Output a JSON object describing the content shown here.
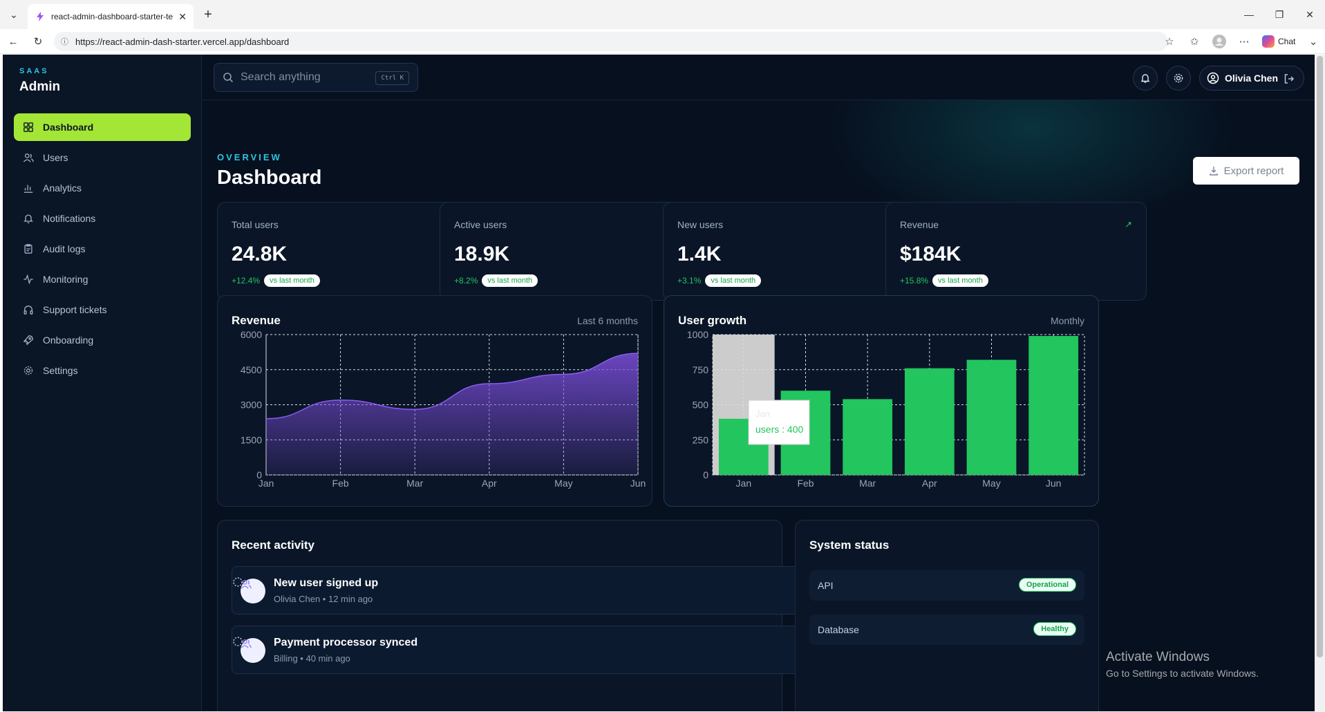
{
  "browser": {
    "tab_title": "react-admin-dashboard-starter-te",
    "url": "https://react-admin-dash-starter.vercel.app/dashboard",
    "chat_label": "Chat"
  },
  "brand": {
    "small": "SAAS",
    "big": "Admin"
  },
  "sidebar": {
    "items": [
      {
        "label": "Dashboard",
        "icon": "grid-icon",
        "active": true
      },
      {
        "label": "Users",
        "icon": "users-icon"
      },
      {
        "label": "Analytics",
        "icon": "bar-chart-icon"
      },
      {
        "label": "Notifications",
        "icon": "bell-icon"
      },
      {
        "label": "Audit logs",
        "icon": "clipboard-icon"
      },
      {
        "label": "Monitoring",
        "icon": "activity-icon"
      },
      {
        "label": "Support tickets",
        "icon": "headphones-icon"
      },
      {
        "label": "Onboarding",
        "icon": "rocket-icon"
      },
      {
        "label": "Settings",
        "icon": "gear-icon"
      }
    ]
  },
  "topbar": {
    "search_placeholder": "Search anything",
    "search_shortcut": "Ctrl K",
    "user_name": "Olivia Chen"
  },
  "header": {
    "eyebrow": "OVERVIEW",
    "title": "Dashboard",
    "export_label": "Export report"
  },
  "kpis": [
    {
      "label": "Total users",
      "value": "24.8K",
      "change": "+12.4%",
      "note": "vs last month"
    },
    {
      "label": "Active users",
      "value": "18.9K",
      "change": "+8.2%",
      "note": "vs last month"
    },
    {
      "label": "New users",
      "value": "1.4K",
      "change": "+3.1%",
      "note": "vs last month"
    },
    {
      "label": "Revenue",
      "value": "$184K",
      "change": "+15.8%",
      "note": "vs last month"
    }
  ],
  "revenue_card": {
    "title": "Revenue",
    "subtitle": "Last 6 months"
  },
  "growth_card": {
    "title": "User growth",
    "subtitle": "Monthly",
    "tooltip_title": "Jan",
    "tooltip_value": "users : 400"
  },
  "chart_data": [
    {
      "type": "area",
      "title": "Revenue",
      "categories": [
        "Jan",
        "Feb",
        "Mar",
        "Apr",
        "May",
        "Jun"
      ],
      "values": [
        2400,
        3200,
        2800,
        3900,
        4300,
        5200
      ],
      "ylim": [
        0,
        6000
      ],
      "yticks": [
        0,
        1500,
        3000,
        4500,
        6000
      ],
      "grid": true,
      "color": "#7c4ddb"
    },
    {
      "type": "bar",
      "title": "User growth",
      "categories": [
        "Jan",
        "Feb",
        "Mar",
        "Apr",
        "May",
        "Jun"
      ],
      "values": [
        400,
        600,
        540,
        760,
        820,
        990
      ],
      "ylim": [
        0,
        1000
      ],
      "yticks": [
        0,
        250,
        500,
        750,
        1000
      ],
      "grid": true,
      "color": "#22c55e"
    }
  ],
  "activity": {
    "title": "Recent activity",
    "items": [
      {
        "title": "New user signed up",
        "meta": "Olivia Chen • 12 min ago"
      },
      {
        "title": "Payment processor synced",
        "meta": "Billing • 40 min ago"
      }
    ]
  },
  "system_status": {
    "title": "System status",
    "rows": [
      {
        "name": "API",
        "status": "Operational"
      },
      {
        "name": "Database",
        "status": "Healthy"
      }
    ]
  },
  "watermark": {
    "line1": "Activate Windows",
    "line2": "Go to Settings to activate Windows."
  }
}
